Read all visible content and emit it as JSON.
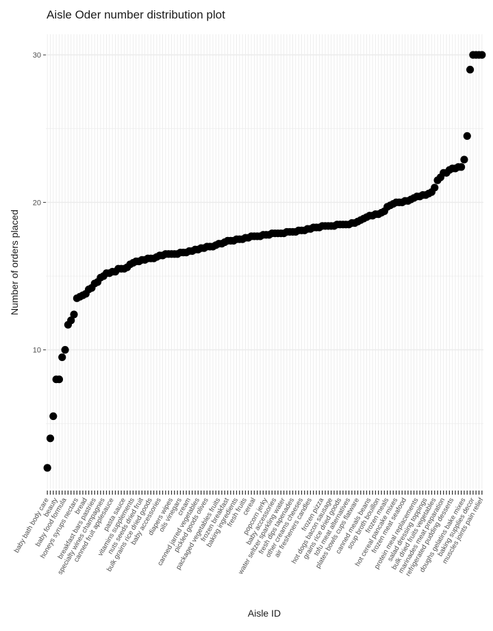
{
  "chart_data": {
    "type": "scatter",
    "title": "Aisle Oder number distribution plot",
    "xlabel": "Aisle ID",
    "ylabel": "Number of orders placed",
    "ylim": [
      0.6,
      31.4
    ],
    "yticks": [
      10,
      20,
      30
    ],
    "grid": true,
    "point_color": "#000000",
    "grid_color": "#ebebeb",
    "x_tick_labels": [
      "baby bath body care",
      "beauty",
      "baby food formula",
      "honeys syrups nectars",
      "bread",
      "breakfast bars pastries",
      "specialty wines champagnes",
      "canned fruit applesauce",
      "pasta sauce",
      "vitamins supplements",
      "nuts seeds dried fruit",
      "bulk grains rice dried goods",
      "baby accessories",
      "diapers wipes",
      "oils vinegars",
      "cream",
      "canned jarred vegetables",
      "pickled goods olives",
      "packaged vegetables fruits",
      "frozen breakfast",
      "baking ingredients",
      "fresh fruits",
      "cereal",
      "popcorn jerky",
      "baby accessories",
      "water seltzer sparkling water",
      "fresh dips tapenades",
      "other creams cheeses",
      "air fresheners candles",
      "frozen pizza",
      "hot dogs bacon sausage",
      "grains rice dried goods",
      "tofu meat alternatives",
      "plates bowls cups flatware",
      "canned meals beans",
      "soup broth bouillon",
      "frozen meals",
      "hot cereal pancake mixes",
      "frozen meat seafood",
      "protein meal replacements",
      "salad dressing toppings",
      "bulk dried fruits vegetables",
      "marinades meat preparation",
      "refrigerated pudding desserts",
      "doughs gelatins bake mixes",
      "baking supplies decor",
      "muscles joints pain relief"
    ],
    "values": [
      2.0,
      4.0,
      5.5,
      8.0,
      8.0,
      9.5,
      10.0,
      11.7,
      12.0,
      12.4,
      13.5,
      13.6,
      13.7,
      13.8,
      14.1,
      14.2,
      14.5,
      14.6,
      14.9,
      15.0,
      15.2,
      15.2,
      15.3,
      15.3,
      15.5,
      15.5,
      15.5,
      15.6,
      15.8,
      15.9,
      16.0,
      16.0,
      16.1,
      16.1,
      16.2,
      16.2,
      16.2,
      16.3,
      16.4,
      16.4,
      16.5,
      16.5,
      16.5,
      16.5,
      16.5,
      16.6,
      16.6,
      16.6,
      16.7,
      16.7,
      16.8,
      16.8,
      16.9,
      16.9,
      17.0,
      17.0,
      17.0,
      17.1,
      17.2,
      17.2,
      17.3,
      17.4,
      17.4,
      17.4,
      17.5,
      17.5,
      17.5,
      17.6,
      17.6,
      17.7,
      17.7,
      17.7,
      17.7,
      17.8,
      17.8,
      17.8,
      17.9,
      17.9,
      17.9,
      17.9,
      17.9,
      18.0,
      18.0,
      18.0,
      18.0,
      18.1,
      18.1,
      18.1,
      18.2,
      18.2,
      18.3,
      18.3,
      18.3,
      18.4,
      18.4,
      18.4,
      18.4,
      18.4,
      18.5,
      18.5,
      18.5,
      18.5,
      18.5,
      18.6,
      18.6,
      18.7,
      18.8,
      18.9,
      19.0,
      19.1,
      19.1,
      19.2,
      19.2,
      19.3,
      19.4,
      19.7,
      19.8,
      19.9,
      20.0,
      20.0,
      20.0,
      20.1,
      20.1,
      20.2,
      20.3,
      20.4,
      20.4,
      20.5,
      20.5,
      20.6,
      20.7,
      21.0,
      21.5,
      21.7,
      22.0,
      22.0,
      22.2,
      22.3,
      22.3,
      22.4,
      22.4,
      22.9,
      24.5,
      29.0,
      30.0,
      30.0,
      30.0,
      30.0
    ]
  }
}
